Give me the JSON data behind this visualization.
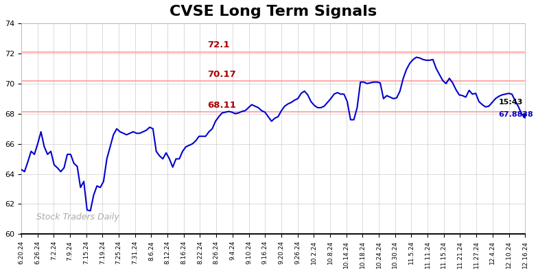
{
  "title": "CVSE Long Term Signals",
  "title_fontsize": 16,
  "background_color": "#ffffff",
  "plot_bg_color": "#ffffff",
  "grid_color": "#cccccc",
  "line_color": "#0000cc",
  "line_width": 1.5,
  "hlines": [
    {
      "y": 72.1,
      "color": "#ff9999",
      "label": "72.1"
    },
    {
      "y": 70.17,
      "color": "#ff9999",
      "label": "70.17"
    },
    {
      "y": 68.11,
      "color": "#ff9999",
      "label": "68.11"
    }
  ],
  "annotation_time": "15:43",
  "annotation_price": "67.8838",
  "annotation_color": "#0000cc",
  "annotation_time_color": "#000000",
  "last_price_marker_color": "#0000cc",
  "watermark": "Stock Traders Daily",
  "watermark_color": "#aaaaaa",
  "watermark_fontsize": 9,
  "ylim": [
    60,
    74
  ],
  "yticks": [
    60,
    62,
    64,
    66,
    68,
    70,
    72,
    74
  ],
  "xtick_labels": [
    "6.20.24",
    "6.26.24",
    "7.2.24",
    "7.9.24",
    "7.15.24",
    "7.19.24",
    "7.25.24",
    "7.31.24",
    "8.6.24",
    "8.12.24",
    "8.16.24",
    "8.22.24",
    "8.26.24",
    "9.4.24",
    "9.10.24",
    "9.16.24",
    "9.20.24",
    "9.26.24",
    "10.2.24",
    "10.8.24",
    "10.14.24",
    "10.18.24",
    "10.24.24",
    "10.30.24",
    "11.5.24",
    "11.11.24",
    "11.15.24",
    "11.21.24",
    "11.27.24",
    "12.4.24",
    "12.10.24",
    "12.16.24"
  ],
  "prices": [
    64.3,
    64.15,
    64.8,
    65.5,
    65.3,
    66.0,
    66.8,
    65.8,
    65.3,
    65.5,
    64.6,
    64.4,
    64.15,
    64.4,
    65.3,
    65.3,
    64.7,
    64.5,
    63.1,
    63.5,
    61.6,
    61.55,
    62.6,
    63.2,
    63.1,
    63.5,
    65.0,
    65.8,
    66.6,
    67.0,
    66.8,
    66.7,
    66.6,
    66.7,
    66.8,
    66.7,
    66.7,
    66.8,
    66.9,
    67.1,
    67.0,
    65.5,
    65.2,
    65.0,
    65.4,
    65.0,
    64.45,
    65.0,
    65.0,
    65.5,
    65.8,
    65.9,
    66.0,
    66.2,
    66.5,
    66.5,
    66.5,
    66.8,
    67.0,
    67.5,
    67.8,
    68.05,
    68.1,
    68.15,
    68.1,
    68.0,
    68.05,
    68.15,
    68.2,
    68.4,
    68.6,
    68.5,
    68.4,
    68.2,
    68.1,
    67.8,
    67.5,
    67.7,
    67.8,
    68.2,
    68.5,
    68.65,
    68.75,
    68.9,
    69.0,
    69.35,
    69.5,
    69.25,
    68.8,
    68.55,
    68.4,
    68.4,
    68.5,
    68.75,
    69.0,
    69.3,
    69.4,
    69.3,
    69.3,
    68.8,
    67.6,
    67.6,
    68.4,
    70.1,
    70.1,
    70.0,
    70.05,
    70.1,
    70.1,
    70.05,
    69.0,
    69.2,
    69.1,
    69.0,
    69.05,
    69.5,
    70.35,
    70.95,
    71.35,
    71.6,
    71.75,
    71.7,
    71.6,
    71.55,
    71.55,
    71.6,
    71.0,
    70.6,
    70.2,
    70.0,
    70.35,
    70.05,
    69.6,
    69.25,
    69.2,
    69.1,
    69.55,
    69.3,
    69.35,
    68.8,
    68.6,
    68.45,
    68.5,
    68.75,
    69.0,
    69.15,
    69.25,
    69.3,
    69.35,
    69.3,
    68.85,
    68.45,
    67.95,
    67.8838
  ]
}
